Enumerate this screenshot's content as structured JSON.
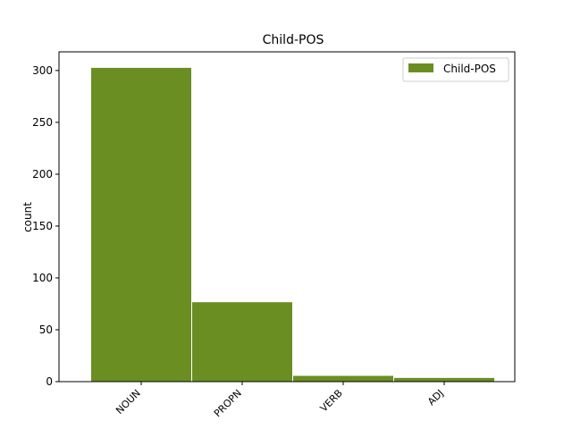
{
  "chart_data": {
    "type": "bar",
    "title": "Child-POS",
    "xlabel": "",
    "ylabel": "count",
    "categories": [
      "NOUN",
      "PROPN",
      "VERB",
      "ADJ"
    ],
    "series": [
      {
        "name": "Child-POS",
        "values": [
          303,
          77,
          6,
          4
        ],
        "color": "#6b8e23"
      }
    ],
    "ylim": [
      0,
      318
    ],
    "yticks": [
      "0",
      "50",
      "100",
      "150",
      "200",
      "250",
      "300"
    ],
    "grid": false,
    "legend": "top-right"
  }
}
